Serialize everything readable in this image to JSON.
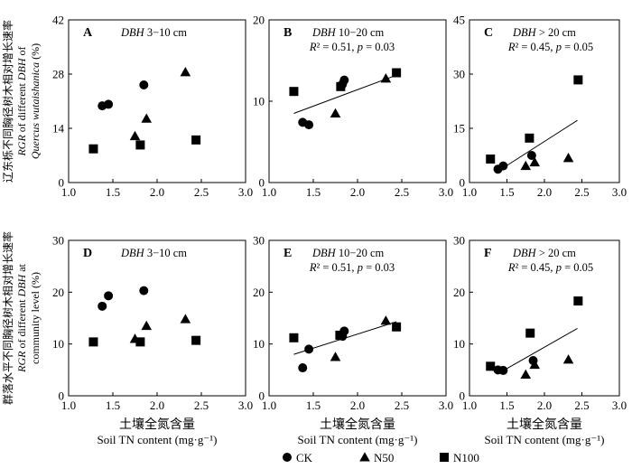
{
  "chart_data": {
    "type": "scatter",
    "y_axis_labels": [
      {
        "row": 0,
        "lines": [
          "辽东栎不同胸径树木相对增长速率",
          "RGR of different DBH of",
          "Quercus wutaishanica (%)"
        ]
      },
      {
        "row": 1,
        "lines": [
          "群落水平不同胸径树木相对增长速率",
          "RGR of different DBH at",
          "community level (%)"
        ]
      }
    ],
    "x_axis_label_cn": "土壤全氮含量",
    "x_axis_label_en": "Soil TN content (mg·g⁻¹)",
    "x_ticks": [
      "1.0",
      "1.5",
      "2.0",
      "2.5",
      "3.0"
    ],
    "xlim": [
      1.0,
      3.0
    ],
    "legend": [
      {
        "name": "CK",
        "marker": "circle"
      },
      {
        "name": "N50",
        "marker": "triangle"
      },
      {
        "name": "N100",
        "marker": "square"
      }
    ],
    "panels": [
      {
        "letter": "A",
        "row": 0,
        "col": 0,
        "title": "DBH 3−10 cm",
        "stats": "",
        "ylim": [
          0,
          42
        ],
        "y_ticks": [
          "0",
          "14",
          "28",
          "42"
        ],
        "series": [
          {
            "marker": "circle",
            "points": [
              [
                1.38,
                19.8
              ],
              [
                1.45,
                20.2
              ],
              [
                1.85,
                25.2
              ]
            ]
          },
          {
            "marker": "triangle",
            "points": [
              [
                1.75,
                12.0
              ],
              [
                1.88,
                16.5
              ],
              [
                2.32,
                28.5
              ]
            ]
          },
          {
            "marker": "square",
            "points": [
              [
                1.28,
                8.7
              ],
              [
                1.81,
                9.7
              ],
              [
                2.44,
                11.0
              ]
            ]
          }
        ],
        "fit": null
      },
      {
        "letter": "B",
        "row": 0,
        "col": 1,
        "title": "DBH 10−20 cm",
        "stats": "R² = 0.51, p = 0.03",
        "ylim": [
          0,
          20
        ],
        "y_ticks": [
          "0",
          "10",
          "20"
        ],
        "series": [
          {
            "marker": "circle",
            "points": [
              [
                1.38,
                7.4
              ],
              [
                1.45,
                7.1
              ],
              [
                1.85,
                12.6
              ],
              [
                1.83,
                12.1
              ]
            ]
          },
          {
            "marker": "triangle",
            "points": [
              [
                1.75,
                8.5
              ],
              [
                2.32,
                12.8
              ]
            ]
          },
          {
            "marker": "square",
            "points": [
              [
                1.28,
                11.2
              ],
              [
                1.81,
                11.8
              ],
              [
                2.44,
                13.5
              ]
            ]
          }
        ],
        "fit": {
          "x": [
            1.28,
            2.44
          ],
          "y": [
            8.5,
            13.2
          ]
        }
      },
      {
        "letter": "C",
        "row": 0,
        "col": 2,
        "title": "DBH > 20 cm",
        "stats": "R² = 0.45, p = 0.05",
        "ylim": [
          0,
          45
        ],
        "y_ticks": [
          "0",
          "15",
          "30",
          "45"
        ],
        "series": [
          {
            "marker": "circle",
            "points": [
              [
                1.38,
                3.7
              ],
              [
                1.45,
                4.6
              ],
              [
                1.83,
                7.5
              ]
            ]
          },
          {
            "marker": "triangle",
            "points": [
              [
                1.75,
                4.6
              ],
              [
                1.87,
                5.6
              ],
              [
                2.32,
                6.8
              ]
            ]
          },
          {
            "marker": "square",
            "points": [
              [
                1.28,
                6.5
              ],
              [
                1.8,
                12.3
              ],
              [
                2.45,
                28.4
              ]
            ]
          }
        ],
        "fit": {
          "x": [
            1.37,
            2.44
          ],
          "y": [
            3.0,
            17.2
          ]
        }
      },
      {
        "letter": "D",
        "row": 1,
        "col": 0,
        "title": "DBH 3−10 cm",
        "stats": "",
        "ylim": [
          0,
          30
        ],
        "y_ticks": [
          "0",
          "10",
          "20",
          "30"
        ],
        "series": [
          {
            "marker": "circle",
            "points": [
              [
                1.38,
                17.3
              ],
              [
                1.45,
                19.3
              ],
              [
                1.85,
                20.3
              ]
            ]
          },
          {
            "marker": "triangle",
            "points": [
              [
                1.75,
                11.0
              ],
              [
                1.88,
                13.5
              ],
              [
                2.32,
                14.8
              ]
            ]
          },
          {
            "marker": "square",
            "points": [
              [
                1.28,
                10.4
              ],
              [
                1.81,
                10.4
              ],
              [
                2.44,
                10.7
              ]
            ]
          }
        ],
        "fit": null
      },
      {
        "letter": "E",
        "row": 1,
        "col": 1,
        "title": "DBH 10−20 cm",
        "stats": "R² = 0.51, p = 0.03",
        "ylim": [
          0,
          30
        ],
        "y_ticks": [
          "0",
          "10",
          "20",
          "30"
        ],
        "series": [
          {
            "marker": "circle",
            "points": [
              [
                1.38,
                5.4
              ],
              [
                1.45,
                9.0
              ],
              [
                1.85,
                12.5
              ],
              [
                1.83,
                11.5
              ]
            ]
          },
          {
            "marker": "triangle",
            "points": [
              [
                1.75,
                7.5
              ],
              [
                2.32,
                14.5
              ]
            ]
          },
          {
            "marker": "square",
            "points": [
              [
                1.28,
                11.2
              ],
              [
                1.8,
                11.7
              ],
              [
                2.44,
                13.3
              ]
            ]
          }
        ],
        "fit": {
          "x": [
            1.28,
            2.44
          ],
          "y": [
            8.0,
            14.3
          ]
        }
      },
      {
        "letter": "F",
        "row": 1,
        "col": 2,
        "title": "DBH > 20 cm",
        "stats": "R² = 0.45, p = 0.05",
        "ylim": [
          0,
          30
        ],
        "y_ticks": [
          "0",
          "10",
          "20",
          "30"
        ],
        "series": [
          {
            "marker": "circle",
            "points": [
              [
                1.38,
                5.0
              ],
              [
                1.45,
                4.9
              ],
              [
                1.85,
                6.8
              ]
            ]
          },
          {
            "marker": "triangle",
            "points": [
              [
                1.75,
                4.1
              ],
              [
                1.87,
                6.0
              ],
              [
                2.32,
                7.0
              ]
            ]
          },
          {
            "marker": "square",
            "points": [
              [
                1.28,
                5.7
              ],
              [
                1.81,
                12.1
              ],
              [
                2.45,
                18.3
              ]
            ]
          }
        ],
        "fit": {
          "x": [
            1.37,
            2.44
          ],
          "y": [
            4.2,
            13.0
          ]
        }
      }
    ]
  }
}
